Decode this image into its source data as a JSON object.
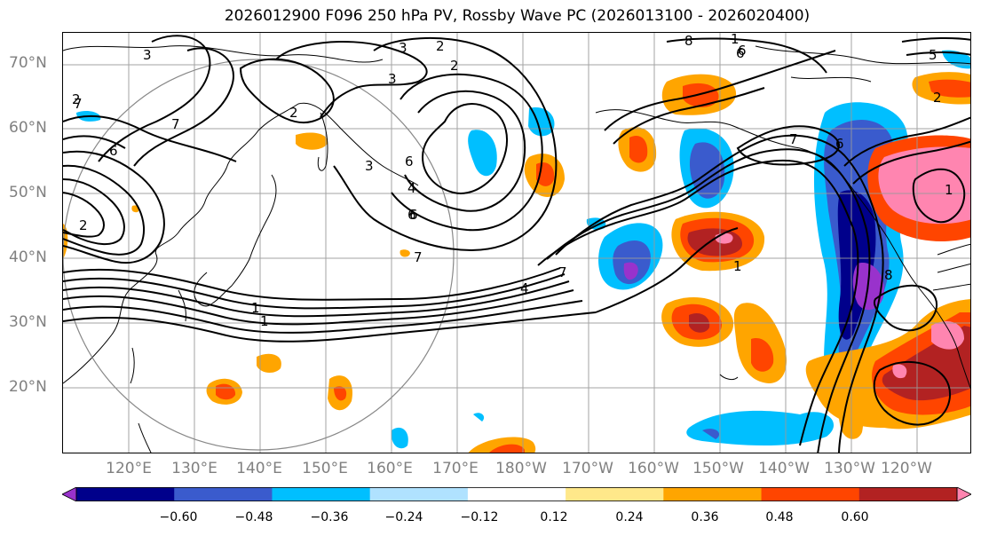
{
  "title": "2026012900 F096 250 hPa PV, Rossby Wave PC (2026013100 - 2026020400)",
  "lat_labels": [
    "70°N",
    "60°N",
    "50°N",
    "40°N",
    "30°N",
    "20°N"
  ],
  "lon_labels": [
    "120°E",
    "130°E",
    "140°E",
    "150°E",
    "160°E",
    "170°E",
    "180°W",
    "170°W",
    "160°W",
    "150°W",
    "140°W",
    "130°W",
    "120°W"
  ],
  "colorbar": {
    "ticks": [
      "−0.60",
      "−0.48",
      "−0.36",
      "−0.24",
      "−0.12",
      "0.12",
      "0.24",
      "0.36",
      "0.48",
      "0.60"
    ],
    "colors": [
      "#9932CC",
      "#00008B",
      "#3A5BCD",
      "#00BFFF",
      "#B0E2FF",
      "#FFFFFF",
      "#FFE88A",
      "#FFA500",
      "#FF4500",
      "#B22222",
      "#FF85B0"
    ]
  },
  "contour_labels": [
    "3",
    "2",
    "3",
    "3",
    "2",
    "6",
    "7",
    "7",
    "6",
    "2",
    "3",
    "6",
    "4",
    "6",
    "4",
    "7",
    "7",
    "2",
    "1",
    "1",
    "1",
    "7",
    "6",
    "6",
    "8",
    "2",
    "1",
    "8",
    "1",
    "6",
    "5",
    "2"
  ]
}
